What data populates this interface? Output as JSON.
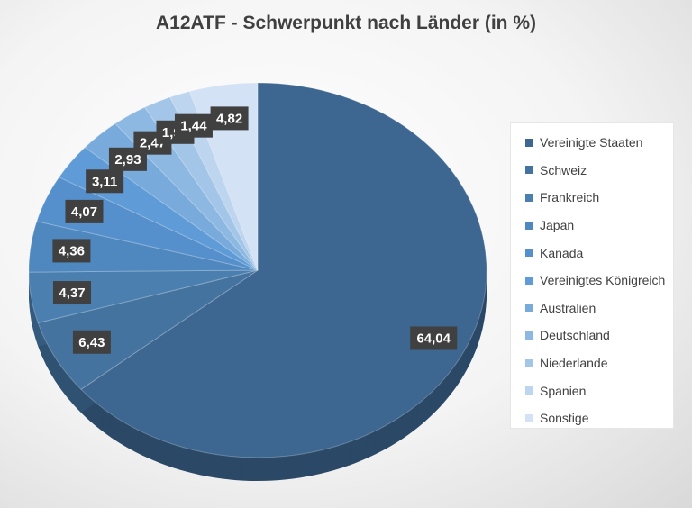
{
  "chart_data": {
    "type": "pie",
    "title": "A12ATF - Schwerpunkt nach Länder (in %)",
    "categories": [
      "Vereinigte Staaten",
      "Schweiz",
      "Frankreich",
      "Japan",
      "Kanada",
      "Vereinigtes Königreich",
      "Australien",
      "Deutschland",
      "Niederlande",
      "Spanien",
      "Sonstige"
    ],
    "values": [
      64.04,
      6.43,
      4.37,
      4.36,
      4.07,
      3.11,
      2.93,
      2.47,
      1.96,
      1.44,
      4.82
    ],
    "labels": [
      "64,04",
      "6,43",
      "4,37",
      "4,36",
      "4,07",
      "3,11",
      "2,93",
      "2,47",
      "1,96",
      "1,44",
      "4,82"
    ],
    "colors": [
      "#3d6690",
      "#44739f",
      "#4a7fb0",
      "#4f87bf",
      "#5590cc",
      "#5f9bd6",
      "#78abdc",
      "#8db8e2",
      "#a3c6e8",
      "#bdd5ee",
      "#d3e2f4"
    ],
    "legend_position": "right"
  }
}
